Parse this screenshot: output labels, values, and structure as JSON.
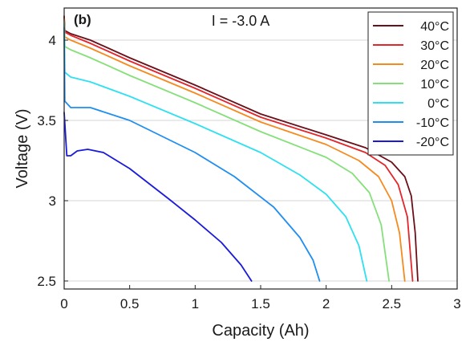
{
  "chart_data": {
    "type": "line",
    "panel_label": "(b)",
    "annotation": "I = -3.0 A",
    "xlabel": "Capacity (Ah)",
    "ylabel": "Voltage (V)",
    "xlim": [
      0,
      3
    ],
    "ylim": [
      2.45,
      4.2
    ],
    "xticks": [
      "0",
      "0.5",
      "1",
      "1.5",
      "2",
      "2.5",
      "3"
    ],
    "xtick_values": [
      0,
      0.5,
      1,
      1.5,
      2,
      2.5,
      3
    ],
    "yticks": [
      "2.5",
      "3",
      "3.5",
      "4"
    ],
    "ytick_values": [
      2.5,
      3,
      3.5,
      4
    ],
    "grid": "horizontal",
    "legend_position": "top-right",
    "series": [
      {
        "name": "40°C",
        "color": "#6b0f1a",
        "points": [
          [
            0,
            4.15
          ],
          [
            0.005,
            4.06
          ],
          [
            0.05,
            4.04
          ],
          [
            0.2,
            4.0
          ],
          [
            0.5,
            3.89
          ],
          [
            1,
            3.72
          ],
          [
            1.5,
            3.54
          ],
          [
            2,
            3.41
          ],
          [
            2.3,
            3.33
          ],
          [
            2.5,
            3.24
          ],
          [
            2.6,
            3.15
          ],
          [
            2.65,
            3.03
          ],
          [
            2.68,
            2.8
          ],
          [
            2.7,
            2.5
          ]
        ]
      },
      {
        "name": "30°C",
        "color": "#e3262b",
        "points": [
          [
            0,
            4.14
          ],
          [
            0.005,
            4.05
          ],
          [
            0.05,
            4.03
          ],
          [
            0.2,
            3.98
          ],
          [
            0.5,
            3.87
          ],
          [
            1,
            3.7
          ],
          [
            1.5,
            3.52
          ],
          [
            2,
            3.39
          ],
          [
            2.3,
            3.3
          ],
          [
            2.45,
            3.22
          ],
          [
            2.55,
            3.1
          ],
          [
            2.62,
            2.9
          ],
          [
            2.66,
            2.5
          ]
        ]
      },
      {
        "name": "20°C",
        "color": "#f58a1f",
        "points": [
          [
            0,
            4.13
          ],
          [
            0.005,
            4.02
          ],
          [
            0.05,
            4.0
          ],
          [
            0.2,
            3.95
          ],
          [
            0.5,
            3.84
          ],
          [
            1,
            3.67
          ],
          [
            1.5,
            3.49
          ],
          [
            2,
            3.35
          ],
          [
            2.25,
            3.25
          ],
          [
            2.4,
            3.15
          ],
          [
            2.5,
            3.0
          ],
          [
            2.56,
            2.8
          ],
          [
            2.6,
            2.5
          ]
        ]
      },
      {
        "name": "10°C",
        "color": "#86e07a",
        "points": [
          [
            0,
            4.12
          ],
          [
            0.005,
            3.96
          ],
          [
            0.05,
            3.94
          ],
          [
            0.2,
            3.89
          ],
          [
            0.5,
            3.78
          ],
          [
            1,
            3.61
          ],
          [
            1.5,
            3.43
          ],
          [
            2,
            3.27
          ],
          [
            2.2,
            3.17
          ],
          [
            2.33,
            3.05
          ],
          [
            2.42,
            2.85
          ],
          [
            2.48,
            2.5
          ]
        ]
      },
      {
        "name": "0°C",
        "color": "#2ee0f0",
        "points": [
          [
            0,
            4.1
          ],
          [
            0.005,
            3.8
          ],
          [
            0.05,
            3.77
          ],
          [
            0.2,
            3.74
          ],
          [
            0.5,
            3.65
          ],
          [
            1,
            3.48
          ],
          [
            1.5,
            3.3
          ],
          [
            1.8,
            3.16
          ],
          [
            2,
            3.04
          ],
          [
            2.15,
            2.9
          ],
          [
            2.25,
            2.72
          ],
          [
            2.31,
            2.5
          ]
        ]
      },
      {
        "name": "-10°C",
        "color": "#1f8ef0",
        "points": [
          [
            0,
            4.08
          ],
          [
            0.005,
            3.62
          ],
          [
            0.05,
            3.58
          ],
          [
            0.2,
            3.58
          ],
          [
            0.5,
            3.5
          ],
          [
            1,
            3.3
          ],
          [
            1.3,
            3.15
          ],
          [
            1.6,
            2.96
          ],
          [
            1.8,
            2.77
          ],
          [
            1.9,
            2.63
          ],
          [
            1.95,
            2.5
          ]
        ]
      },
      {
        "name": "-20°C",
        "color": "#1a1adb",
        "points": [
          [
            0,
            3.55
          ],
          [
            0.02,
            3.28
          ],
          [
            0.05,
            3.28
          ],
          [
            0.1,
            3.31
          ],
          [
            0.18,
            3.32
          ],
          [
            0.3,
            3.3
          ],
          [
            0.5,
            3.2
          ],
          [
            0.8,
            3.01
          ],
          [
            1,
            2.88
          ],
          [
            1.2,
            2.74
          ],
          [
            1.35,
            2.6
          ],
          [
            1.43,
            2.5
          ]
        ]
      }
    ]
  }
}
